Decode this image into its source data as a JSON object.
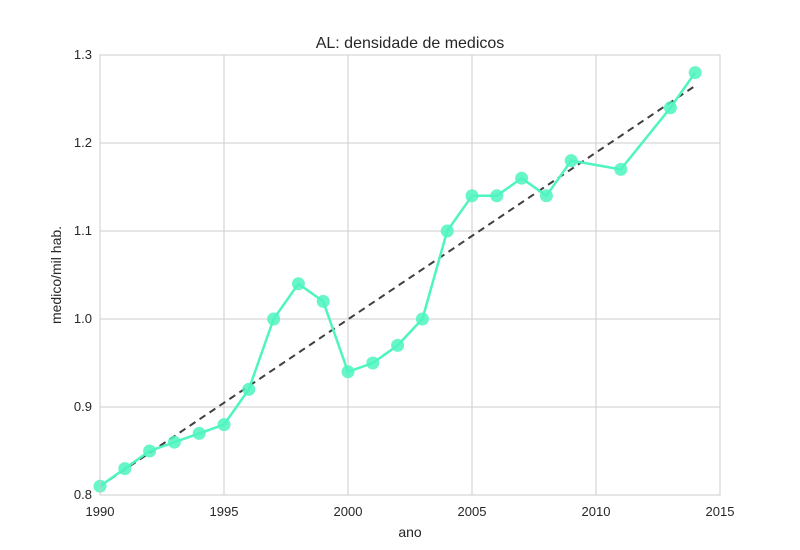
{
  "chart_data": {
    "type": "line",
    "title": "AL: densidade de medicos",
    "xlabel": "ano",
    "ylabel": "medico/mil hab.",
    "xlim": [
      1990,
      2015
    ],
    "ylim": [
      0.8,
      1.3
    ],
    "xticks": [
      1990,
      1995,
      2000,
      2005,
      2010,
      2015
    ],
    "yticks": [
      0.8,
      0.9,
      1.0,
      1.1,
      1.2,
      1.3
    ],
    "xtick_labels": [
      "1990",
      "1995",
      "2000",
      "2005",
      "2010",
      "2015"
    ],
    "ytick_labels": [
      "0.8",
      "0.9",
      "1.0",
      "1.1",
      "1.2",
      "1.3"
    ],
    "grid": true,
    "series": [
      {
        "style": "line-with-markers",
        "color": "#4ef5c0",
        "x": [
          1990,
          1991,
          1992,
          1993,
          1994,
          1995,
          1996,
          1997,
          1998,
          1999,
          2000,
          2001,
          2002,
          2003,
          2004,
          2005,
          2006,
          2007,
          2008,
          2009,
          2011,
          2013,
          2014
        ],
        "y": [
          0.81,
          0.83,
          0.85,
          0.86,
          0.87,
          0.88,
          0.92,
          1.0,
          1.04,
          1.02,
          0.94,
          0.95,
          0.97,
          1.0,
          1.1,
          1.14,
          1.14,
          1.16,
          1.14,
          1.18,
          1.17,
          1.24,
          1.28
        ]
      },
      {
        "style": "dashed-trend-line",
        "color": "#404040",
        "x": [
          1990,
          2014
        ],
        "y": [
          0.81,
          1.265
        ]
      }
    ]
  }
}
